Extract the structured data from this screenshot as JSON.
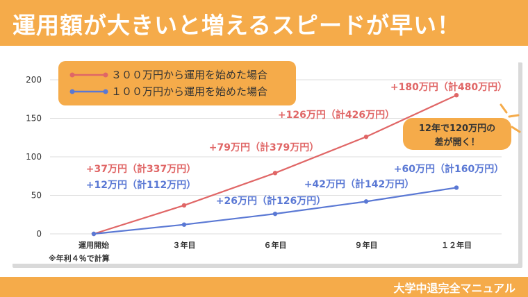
{
  "title": "運用額が大きいと増えるスピードが早い！",
  "footer": "大学中退完全マニュアル",
  "note": "※年利４％で計算",
  "callout": [
    "12年で120万円の",
    "差が開く！"
  ],
  "colors": {
    "accent": "#f5ab4a",
    "red": "#e06666",
    "blue": "#5a78d4"
  },
  "chart_data": {
    "type": "line",
    "categories": [
      "運用開始",
      "３年目",
      "６年目",
      "９年目",
      "１２年目"
    ],
    "ylim": [
      0,
      200
    ],
    "yticks": [
      0,
      50,
      100,
      150,
      200
    ],
    "series": [
      {
        "name": "３００万円から運用を始めた場合",
        "color": "#e06666",
        "values": [
          0,
          37,
          79,
          126,
          180
        ],
        "labels": [
          "",
          "+37万円（計337万円）",
          "+79万円（計379万円）",
          "+126万円（計426万円）",
          "+180万円（計480万円）"
        ]
      },
      {
        "name": "１００万円から運用を始めた場合",
        "color": "#5a78d4",
        "values": [
          0,
          12,
          26,
          42,
          60
        ],
        "labels": [
          "",
          "+12万円（計112万円）",
          "+26万円（計126万円）",
          "+42万円（計142万円）",
          "+60万円（計160万円）"
        ]
      }
    ]
  }
}
